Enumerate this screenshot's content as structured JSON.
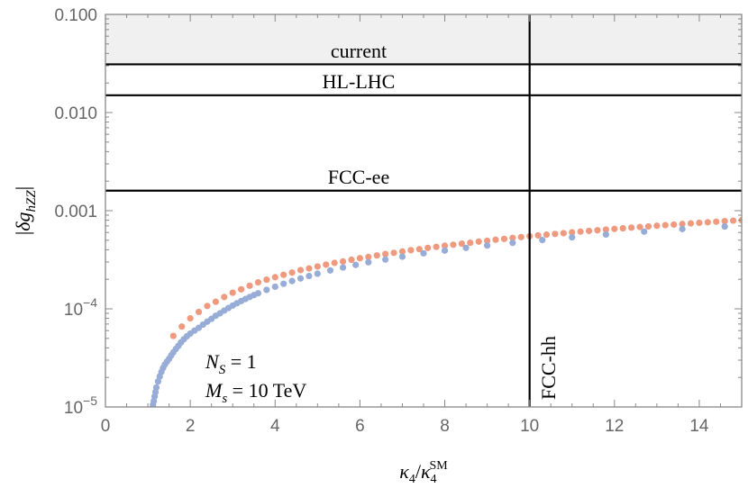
{
  "chart_data": {
    "type": "scatter",
    "xlabel": "κ4/κ4SM",
    "ylabel": "|δghZZ|",
    "xlim": [
      0,
      15
    ],
    "ylim": [
      1e-05,
      0.1
    ],
    "yscale": "log",
    "x_ticks": [
      {
        "value": 0,
        "label": "0"
      },
      {
        "value": 2,
        "label": "2"
      },
      {
        "value": 4,
        "label": "4"
      },
      {
        "value": 6,
        "label": "6"
      },
      {
        "value": 8,
        "label": "8"
      },
      {
        "value": 10,
        "label": "10"
      },
      {
        "value": 12,
        "label": "12"
      },
      {
        "value": 14,
        "label": "14"
      }
    ],
    "y_ticks": [
      {
        "value": 0.1,
        "label": "0.100"
      },
      {
        "value": 0.01,
        "label": "0.010"
      },
      {
        "value": 0.001,
        "label": "0.001"
      },
      {
        "value": 0.0001,
        "label": "10",
        "exp": "−4"
      },
      {
        "value": 1e-05,
        "label": "10",
        "exp": "−5"
      }
    ],
    "shaded_region": {
      "label": "current",
      "y_from": 0.031,
      "y_to": 0.1,
      "color": "#f0f0f0"
    },
    "hlines": [
      {
        "label": "current",
        "y": 0.031
      },
      {
        "label": "HL-LHC",
        "y": 0.015
      },
      {
        "label": "FCC-ee",
        "y": 0.0016
      }
    ],
    "vlines": [
      {
        "label": "FCC-hh",
        "x": 10
      }
    ],
    "annotations": {
      "n_s": {
        "lhs": "N",
        "sub": "S",
        "rhs": " = 1"
      },
      "m_s": {
        "lhs": "M",
        "sub": "s",
        "rhs": " = 10 TeV"
      }
    },
    "series": [
      {
        "color": "#ef9a7f",
        "points": [
          [
            1.6,
            5.3e-05
          ],
          [
            1.8,
            6.6e-05
          ],
          [
            2.0,
            8e-05
          ],
          [
            2.2,
            9.3e-05
          ],
          [
            2.4,
            0.000107
          ],
          [
            2.6,
            0.000118
          ],
          [
            2.8,
            0.000132
          ],
          [
            3.0,
            0.000146
          ],
          [
            3.2,
            0.000158
          ],
          [
            3.4,
            0.000172
          ],
          [
            3.6,
            0.000186
          ],
          [
            3.8,
            0.000198
          ],
          [
            4.0,
            0.00021
          ],
          [
            4.2,
            0.000222
          ],
          [
            4.4,
            0.000234
          ],
          [
            4.6,
            0.000248
          ],
          [
            4.8,
            0.000258
          ],
          [
            5.0,
            0.00027
          ],
          [
            5.2,
            0.000282
          ],
          [
            5.4,
            0.000294
          ],
          [
            5.6,
            0.000304
          ],
          [
            5.8,
            0.000316
          ],
          [
            6.0,
            0.000328
          ],
          [
            6.2,
            0.000338
          ],
          [
            6.4,
            0.00035
          ],
          [
            6.6,
            0.000362
          ],
          [
            6.8,
            0.000372
          ],
          [
            7.0,
            0.000384
          ],
          [
            7.2,
            0.000396
          ],
          [
            7.4,
            0.000406
          ],
          [
            7.6,
            0.000418
          ],
          [
            7.8,
            0.000428
          ],
          [
            8.0,
            0.00044
          ],
          [
            8.2,
            0.00045
          ],
          [
            8.4,
            0.000462
          ],
          [
            8.6,
            0.000472
          ],
          [
            8.8,
            0.000484
          ],
          [
            9.0,
            0.000494
          ],
          [
            9.2,
            0.000506
          ],
          [
            9.4,
            0.000516
          ],
          [
            9.6,
            0.000528
          ],
          [
            9.8,
            0.000538
          ],
          [
            10.0,
            0.00055
          ],
          [
            10.2,
            0.00056
          ],
          [
            10.4,
            0.00057
          ],
          [
            10.6,
            0.00058
          ],
          [
            10.8,
            0.00059
          ],
          [
            11.0,
            0.000602
          ],
          [
            11.2,
            0.000612
          ],
          [
            11.4,
            0.000622
          ],
          [
            11.6,
            0.000632
          ],
          [
            11.8,
            0.000642
          ],
          [
            12.0,
            0.000652
          ],
          [
            12.2,
            0.000662
          ],
          [
            12.4,
            0.000672
          ],
          [
            12.6,
            0.000682
          ],
          [
            12.8,
            0.000692
          ],
          [
            13.0,
            0.000702
          ],
          [
            13.2,
            0.000712
          ],
          [
            13.4,
            0.000722
          ],
          [
            13.6,
            0.000732
          ],
          [
            13.8,
            0.000742
          ],
          [
            14.0,
            0.000752
          ],
          [
            14.2,
            0.000762
          ],
          [
            14.4,
            0.000772
          ],
          [
            14.6,
            0.000782
          ],
          [
            14.8,
            0.000792
          ],
          [
            15.0,
            0.0008
          ]
        ]
      },
      {
        "color": "#97acd6",
        "points": [
          [
            1.12,
            1.05e-05
          ],
          [
            1.14,
            1.15e-05
          ],
          [
            1.16,
            1.28e-05
          ],
          [
            1.18,
            1.42e-05
          ],
          [
            1.2,
            1.58e-05
          ],
          [
            1.24,
            1.82e-05
          ],
          [
            1.28,
            2.05e-05
          ],
          [
            1.32,
            2.28e-05
          ],
          [
            1.36,
            2.5e-05
          ],
          [
            1.4,
            2.7e-05
          ],
          [
            1.45,
            2.9e-05
          ],
          [
            1.5,
            3.1e-05
          ],
          [
            1.55,
            3.35e-05
          ],
          [
            1.6,
            3.6e-05
          ],
          [
            1.66,
            3.9e-05
          ],
          [
            1.72,
            4.2e-05
          ],
          [
            1.78,
            4.55e-05
          ],
          [
            1.85,
            4.9e-05
          ],
          [
            1.92,
            5.25e-05
          ],
          [
            2.0,
            5.6e-05
          ],
          [
            2.1,
            6e-05
          ],
          [
            2.2,
            6.4e-05
          ],
          [
            2.3,
            6.9e-05
          ],
          [
            2.4,
            7.4e-05
          ],
          [
            2.5,
            7.9e-05
          ],
          [
            2.6,
            8.5e-05
          ],
          [
            2.7,
            9e-05
          ],
          [
            2.8,
            9.6e-05
          ],
          [
            2.9,
            0.000102
          ],
          [
            3.0,
            0.000108
          ],
          [
            3.1,
            0.000114
          ],
          [
            3.2,
            0.00012
          ],
          [
            3.3,
            0.000126
          ],
          [
            3.4,
            0.000132
          ],
          [
            3.5,
            0.000138
          ],
          [
            3.6,
            0.000144
          ],
          [
            3.8,
            0.000156
          ],
          [
            4.0,
            0.000168
          ],
          [
            4.2,
            0.00018
          ],
          [
            4.4,
            0.000192
          ],
          [
            4.6,
            0.000204
          ],
          [
            4.8,
            0.000216
          ],
          [
            5.0,
            0.000228
          ],
          [
            5.3,
            0.000246
          ],
          [
            5.6,
            0.000264
          ],
          [
            5.9,
            0.00028
          ],
          [
            6.2,
            0.000298
          ],
          [
            6.6,
            0.000318
          ],
          [
            7.0,
            0.00034
          ],
          [
            7.5,
            0.000368
          ],
          [
            8.0,
            0.000392
          ],
          [
            8.5,
            0.000418
          ],
          [
            9.0,
            0.000442
          ],
          [
            9.6,
            0.00047
          ],
          [
            10.3,
            0.000502
          ],
          [
            11.0,
            0.000535
          ],
          [
            11.8,
            0.000572
          ],
          [
            12.7,
            0.000612
          ],
          [
            13.6,
            0.00065
          ],
          [
            14.6,
            0.00069
          ]
        ]
      }
    ]
  }
}
